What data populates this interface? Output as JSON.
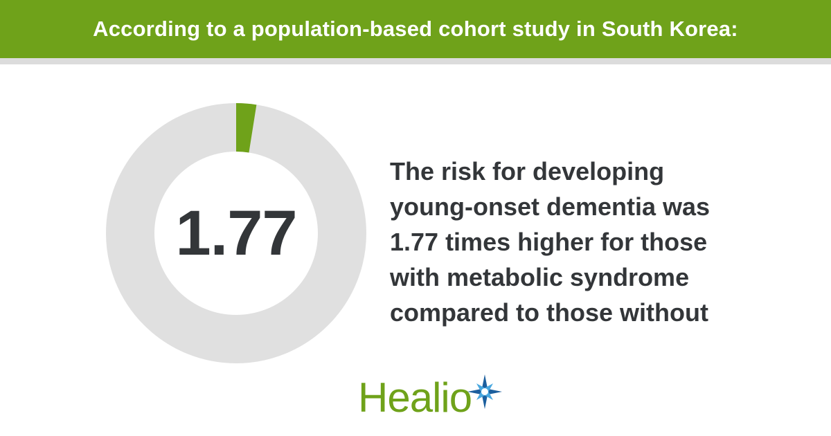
{
  "header": {
    "title": "According to a population-based cohort study in South Korea:"
  },
  "stat": {
    "value_text": "1.77",
    "ring_fill_fraction": 0.025
  },
  "statement": {
    "lines": [
      "The risk for developing",
      "young-onset dementia was",
      "1.77 times higher for those",
      "with metabolic syndrome",
      "compared to those without"
    ]
  },
  "logo": {
    "text": "Healio",
    "icon": "star-burst-icon"
  },
  "colors": {
    "brand_green": "#6fa21a",
    "rule_gray": "#dcdcdc",
    "ring_gray": "#e0e0e0",
    "text_dark": "#333639",
    "star_blue_dark": "#1c5f9e",
    "star_blue_light": "#49a8e0",
    "white": "#ffffff"
  }
}
